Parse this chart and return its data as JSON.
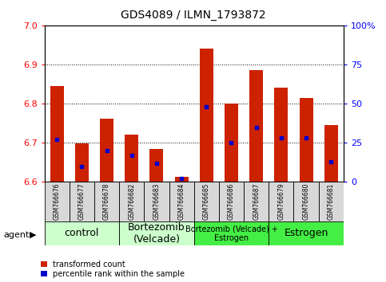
{
  "title": "GDS4089 / ILMN_1793872",
  "samples": [
    "GSM766676",
    "GSM766677",
    "GSM766678",
    "GSM766682",
    "GSM766683",
    "GSM766684",
    "GSM766685",
    "GSM766686",
    "GSM766687",
    "GSM766679",
    "GSM766680",
    "GSM766681"
  ],
  "transformed_count": [
    6.845,
    6.698,
    6.762,
    6.72,
    6.685,
    6.613,
    6.94,
    6.8,
    6.885,
    6.84,
    6.815,
    6.745
  ],
  "percentile_rank": [
    27,
    10,
    20,
    17,
    12,
    2,
    48,
    25,
    35,
    28,
    28,
    13
  ],
  "ylim_left": [
    6.6,
    7.0
  ],
  "ylim_right": [
    0,
    100
  ],
  "yticks_left": [
    6.6,
    6.7,
    6.8,
    6.9,
    7.0
  ],
  "yticks_right": [
    0,
    25,
    50,
    75,
    100
  ],
  "ytick_labels_right": [
    "0",
    "25",
    "50",
    "75",
    "100%"
  ],
  "bar_color": "#cc2200",
  "marker_color": "#0000cc",
  "bar_width": 0.55,
  "groups": [
    {
      "label": "control",
      "start": 0,
      "end": 2,
      "color": "#ccffcc",
      "fontsize": 9
    },
    {
      "label": "Bortezomib\n(Velcade)",
      "start": 3,
      "end": 5,
      "color": "#ccffcc",
      "fontsize": 9
    },
    {
      "label": "Bortezomib (Velcade) +\nEstrogen",
      "start": 6,
      "end": 8,
      "color": "#44ee44",
      "fontsize": 7
    },
    {
      "label": "Estrogen",
      "start": 9,
      "end": 11,
      "color": "#44ee44",
      "fontsize": 9
    }
  ],
  "agent_label": "agent",
  "legend_items": [
    {
      "label": "transformed count",
      "color": "#cc2200"
    },
    {
      "label": "percentile rank within the sample",
      "color": "#0000cc"
    }
  ],
  "background_color": "#d8d8d8",
  "title_fontsize": 10
}
